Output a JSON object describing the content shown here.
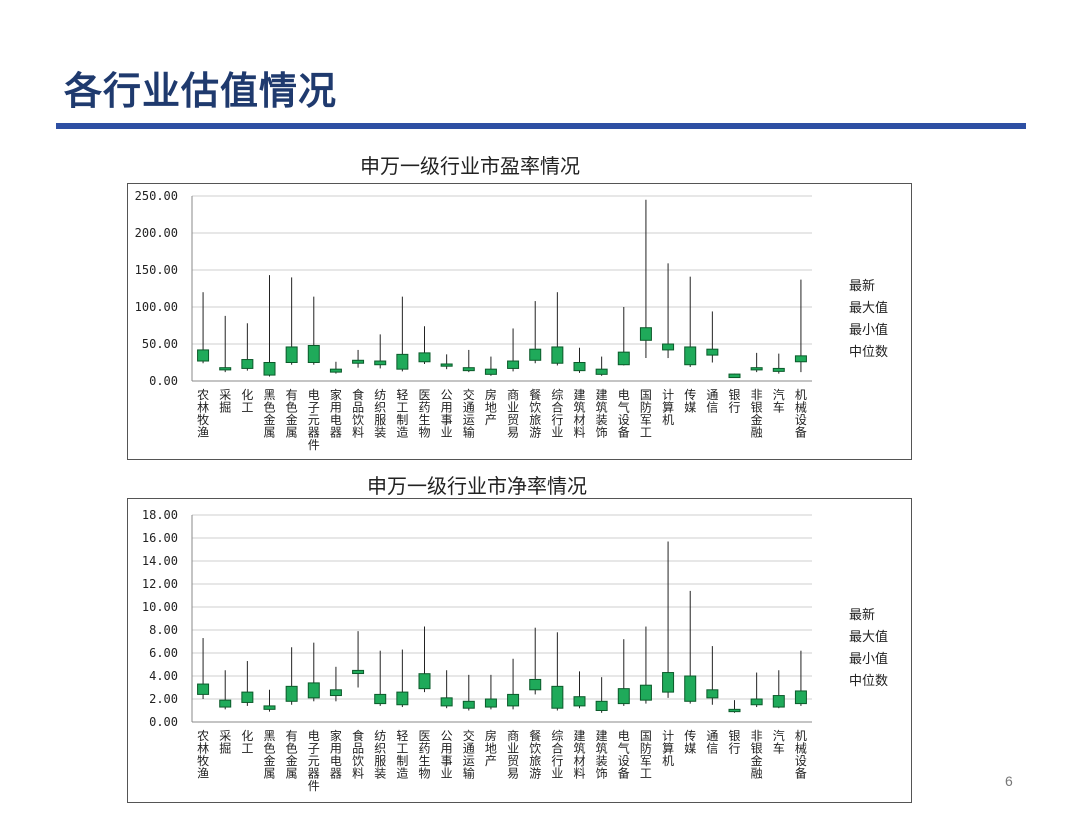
{
  "slide": {
    "title": "各行业估值情况",
    "page_number": "6"
  },
  "colors": {
    "accent": "#2e4fa3",
    "title": "#1f3a6e",
    "box_fill": "#1faa5a",
    "box_stroke": "#0b5a2a"
  },
  "chart_data": [
    {
      "type": "box",
      "title": "申万一级行业市盈率情况",
      "ylim": [
        0,
        250
      ],
      "yticks": [
        "250.00",
        "200.00",
        "150.00",
        "100.00",
        "50.00",
        "0.00"
      ],
      "ytick_values": [
        250,
        200,
        150,
        100,
        50,
        0
      ],
      "legend": [
        "最新",
        "最大值",
        "最小值",
        "中位数"
      ],
      "legend_position": "right",
      "categories": [
        "农林牧渔",
        "采掘",
        "化工",
        "黑色金属",
        "有色金属",
        "电子元器件",
        "家用电器",
        "食品饮料",
        "纺织服装",
        "轻工制造",
        "医药生物",
        "公用事业",
        "交通运输",
        "房地产",
        "商业贸易",
        "餐饮旅游",
        "综合行业",
        "建筑材料",
        "建筑装饰",
        "电气设备",
        "国防军工",
        "计算机",
        "传媒",
        "通信",
        "银行",
        "非银金融",
        "汽车",
        "机械设备"
      ],
      "series": [
        {
          "name": "最新",
          "values": [
            42,
            18,
            29,
            25,
            46,
            48,
            16,
            28,
            27,
            36,
            38,
            23,
            18,
            16,
            27,
            43,
            46,
            25,
            16,
            39,
            72,
            50,
            46,
            43,
            8,
            18,
            17,
            34
          ]
        },
        {
          "name": "最大值",
          "values": [
            120,
            88,
            78,
            143,
            140,
            114,
            26,
            42,
            63,
            114,
            74,
            36,
            42,
            33,
            71,
            108,
            120,
            45,
            33,
            100,
            245,
            159,
            141,
            94,
            10,
            38,
            37,
            137
          ]
        },
        {
          "name": "最小值",
          "values": [
            24,
            12,
            14,
            6,
            22,
            22,
            10,
            18,
            17,
            13,
            23,
            16,
            12,
            7,
            13,
            24,
            21,
            11,
            7,
            21,
            31,
            31,
            19,
            25,
            5,
            12,
            10,
            12
          ]
        },
        {
          "name": "中位数",
          "values": [
            27,
            15,
            17,
            8,
            25,
            25,
            12,
            24,
            22,
            16,
            26,
            20,
            14,
            9,
            17,
            28,
            24,
            14,
            9,
            22,
            55,
            42,
            22,
            35,
            6,
            15,
            13,
            26
          ]
        }
      ]
    },
    {
      "type": "box",
      "title": "申万一级行业市净率情况",
      "ylim": [
        0,
        18
      ],
      "yticks": [
        "18.00",
        "16.00",
        "14.00",
        "12.00",
        "10.00",
        "8.00",
        "6.00",
        "4.00",
        "2.00",
        "0.00"
      ],
      "ytick_values": [
        18,
        16,
        14,
        12,
        10,
        8,
        6,
        4,
        2,
        0
      ],
      "legend": [
        "最新",
        "最大值",
        "最小值",
        "中位数"
      ],
      "legend_position": "right",
      "categories": [
        "农林牧渔",
        "采掘",
        "化工",
        "黑色金属",
        "有色金属",
        "电子元器件",
        "家用电器",
        "食品饮料",
        "纺织服装",
        "轻工制造",
        "医药生物",
        "公用事业",
        "交通运输",
        "房地产",
        "商业贸易",
        "餐饮旅游",
        "综合行业",
        "建筑材料",
        "建筑装饰",
        "电气设备",
        "国防军工",
        "计算机",
        "传媒",
        "通信",
        "银行",
        "非银金融",
        "汽车",
        "机械设备"
      ],
      "series": [
        {
          "name": "最新",
          "values": [
            3.3,
            1.9,
            2.6,
            1.4,
            3.1,
            3.4,
            2.8,
            4.4,
            2.4,
            2.6,
            4.2,
            2.1,
            1.8,
            2.0,
            2.4,
            3.7,
            3.1,
            2.2,
            1.8,
            2.9,
            3.2,
            4.3,
            4.0,
            2.8,
            1.1,
            2.0,
            2.3,
            2.7
          ]
        },
        {
          "name": "最大值",
          "values": [
            7.3,
            4.5,
            5.3,
            2.8,
            6.5,
            6.9,
            4.8,
            7.9,
            6.2,
            6.3,
            8.3,
            4.5,
            4.1,
            4.1,
            5.5,
            8.2,
            7.8,
            4.4,
            3.9,
            7.2,
            8.3,
            15.7,
            11.4,
            6.6,
            1.9,
            4.3,
            4.5,
            6.2
          ]
        },
        {
          "name": "最小值",
          "values": [
            2.0,
            1.1,
            1.4,
            0.9,
            1.5,
            1.8,
            1.8,
            3.0,
            1.4,
            1.3,
            2.6,
            1.2,
            1.0,
            1.1,
            1.1,
            2.4,
            1.0,
            1.2,
            0.8,
            1.4,
            1.6,
            2.1,
            1.6,
            1.5,
            0.8,
            1.3,
            1.2,
            1.4
          ]
        },
        {
          "name": "中位数",
          "values": [
            2.4,
            1.3,
            1.7,
            1.1,
            1.8,
            2.1,
            2.3,
            4.3,
            1.6,
            1.5,
            2.9,
            1.4,
            1.2,
            1.3,
            1.4,
            2.8,
            1.2,
            1.4,
            1.0,
            1.6,
            1.9,
            2.6,
            1.8,
            2.1,
            0.9,
            1.5,
            1.3,
            1.6
          ]
        }
      ]
    }
  ]
}
